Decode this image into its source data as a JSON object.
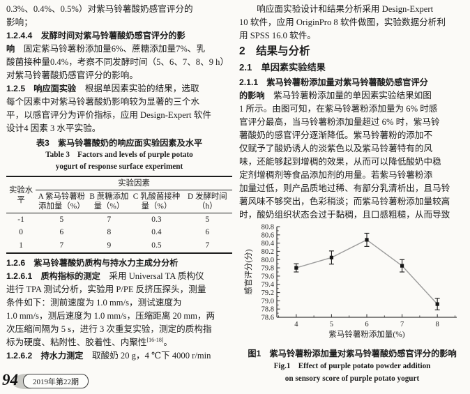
{
  "footer": {
    "page_number": "94",
    "issue": "2019年第22期"
  },
  "left_column": {
    "lines": [
      [
        {
          "t": "0.3%、0.4%、0.5%）对紫马铃薯酸奶感官评分的"
        }
      ],
      [
        {
          "t": "影响；"
        }
      ],
      [
        {
          "t": "1.2.4.4　发酵时间对紫马铃薯酸奶感官评分的影",
          "b": true
        }
      ],
      [
        {
          "t": "响",
          "b": true
        },
        {
          "t": "　固定紫马铃薯粉添加量6%、蔗糖添加量7%、乳"
        }
      ],
      [
        {
          "t": "酸菌接种量0.4%，考察不同发酵时间（5、6、7、8、9 h）"
        }
      ],
      [
        {
          "t": "对紫马铃薯酸奶感官评分的影响。"
        }
      ],
      [
        {
          "t": "1.2.5　响应面实验",
          "b": true
        },
        {
          "t": "　根据单因素实验的结果，选取"
        }
      ],
      [
        {
          "t": "每个因素中对紫马铃薯酸奶影响较为显著的三个水"
        }
      ],
      [
        {
          "t": "平，以感官评分为评价指标，应用 Design-Expert 软件"
        }
      ],
      [
        {
          "t": "设计4 因素 3 水平实验。"
        }
      ]
    ],
    "table": {
      "title_cn": "表3　紫马铃薯酸奶的响应面实验因素及水平",
      "title_en_line1": "Table 3　Factors and levels of purple potato",
      "title_en_line2": "yogurt of response surface experiment",
      "group_header": "实验因素",
      "row_header": "实验水平",
      "columns": [
        "A 紫马铃薯粉添加量（%）",
        "B 蔗糖添加量（%）",
        "C 乳酸菌接种量（%）",
        "D 发酵时间（h）"
      ],
      "rows": [
        [
          "-1",
          "5",
          "7",
          "0.3",
          "5"
        ],
        [
          "0",
          "6",
          "8",
          "0.4",
          "6"
        ],
        [
          "1",
          "7",
          "9",
          "0.5",
          "7"
        ]
      ]
    },
    "lines2": [
      [
        {
          "t": "1.2.6　紫马铃薯酸奶质构与持水力主成分分析",
          "b": true
        }
      ],
      [
        {
          "t": "1.2.6.1　质构指标的测定",
          "b": true
        },
        {
          "t": "　采用 Universal TA 质构仪"
        }
      ],
      [
        {
          "t": "进行 TPA 测试分析，实验用 P/PE 反挤压探头，测量"
        }
      ],
      [
        {
          "t": "条件如下：测前速度为 1.0 mm/s，测试速度为"
        }
      ],
      [
        {
          "t": "1.0 mm/s，测后速度为 1.0 mm/s，压缩距离 20 mm，两"
        }
      ],
      [
        {
          "t": "次压缩间隔为 5 s，进行 3 次重复实验，测定的质构指"
        }
      ],
      [
        {
          "t": "标为硬度、粘附性、胶着性、内聚性"
        },
        {
          "t": "[16-18]",
          "sup": true
        },
        {
          "t": "。"
        }
      ],
      [
        {
          "t": "1.2.6.2　持水力测定",
          "b": true
        },
        {
          "t": "　取酸奶 20 g，4 ℃下 4000 r/min"
        }
      ]
    ]
  },
  "right_column": {
    "lines": [
      [
        {
          "t": "　　响应面实验设计和结果分析采用 Design-Expert"
        }
      ],
      [
        {
          "t": "10 软件，应用 OriginPro 8 软件做图，实验数据分析利"
        }
      ],
      [
        {
          "t": "用 SPSS 16.0 软件。"
        }
      ]
    ],
    "heading_section": "2　结果与分析",
    "heading_sub": "2.1　单因素实验结果",
    "lines2": [
      [
        {
          "t": "2.1.1　紫马铃薯粉添加量对紫马铃薯酸奶感官评分",
          "b": true
        }
      ],
      [
        {
          "t": "的影响",
          "b": true
        },
        {
          "t": "　紫马铃薯粉添加量的单因素实验结果如图"
        }
      ],
      [
        {
          "t": "1 所示。由图可知，在紫马铃薯粉添加量为 6% 时感"
        }
      ],
      [
        {
          "t": "官评分最高，当马铃薯粉添加量超过 6% 时，紫马铃"
        }
      ],
      [
        {
          "t": "薯酸奶的感官评分逐渐降低。紫马铃薯粉的添加不"
        }
      ],
      [
        {
          "t": "仅赋予了酸奶诱人的淡紫色以及紫马铃薯特有的风"
        }
      ],
      [
        {
          "t": "味，还能够起到增稠的效果，从而可以降低酸奶中稳"
        }
      ],
      [
        {
          "t": "定剂增稠剂等食品添加剂的用量。若紫马铃薯粉添"
        }
      ],
      [
        {
          "t": "加量过低，则产品质地过稀、有部分乳清析出，且马铃"
        }
      ],
      [
        {
          "t": "薯风味不够突出，色彩稍淡；而紫马铃薯粉添加量较高"
        }
      ],
      [
        {
          "t": "时，酸奶组织状态会过于黏稠，且口感粗糙，从而导致"
        }
      ]
    ],
    "figure": {
      "caption_cn": "图1　紫马铃薯粉添加量对紫马铃薯酸奶感官评分的影响",
      "caption_en_line1": "Fig.1　Effect of purple potato powder addition",
      "caption_en_line2": "on sensory score of purple potato yogurt"
    }
  },
  "chart_data": {
    "type": "line",
    "series": [
      {
        "name": "感官评分",
        "x": [
          4,
          5,
          6,
          7,
          8
        ],
        "values": [
          79.8,
          80.05,
          80.48,
          79.85,
          78.92
        ],
        "errors": [
          0.1,
          0.16,
          0.16,
          0.15,
          0.14
        ]
      }
    ],
    "xlabel": "紫马铃薯粉添加量(%)",
    "ylabel": "感官评分(分)",
    "xlim": [
      3.45,
      8.55
    ],
    "ylim": [
      78.6,
      80.8
    ],
    "xticks": [
      4,
      5,
      6,
      7,
      8
    ],
    "ytick_step": 0.2,
    "x_minor_step": 0.5,
    "y_minor_step": 0.1,
    "grid": false,
    "legend_position": "none",
    "marker": "filled-square",
    "line_color": "#9b9b9b",
    "marker_color": "#161616",
    "axis_color": "#3c3c3c"
  }
}
